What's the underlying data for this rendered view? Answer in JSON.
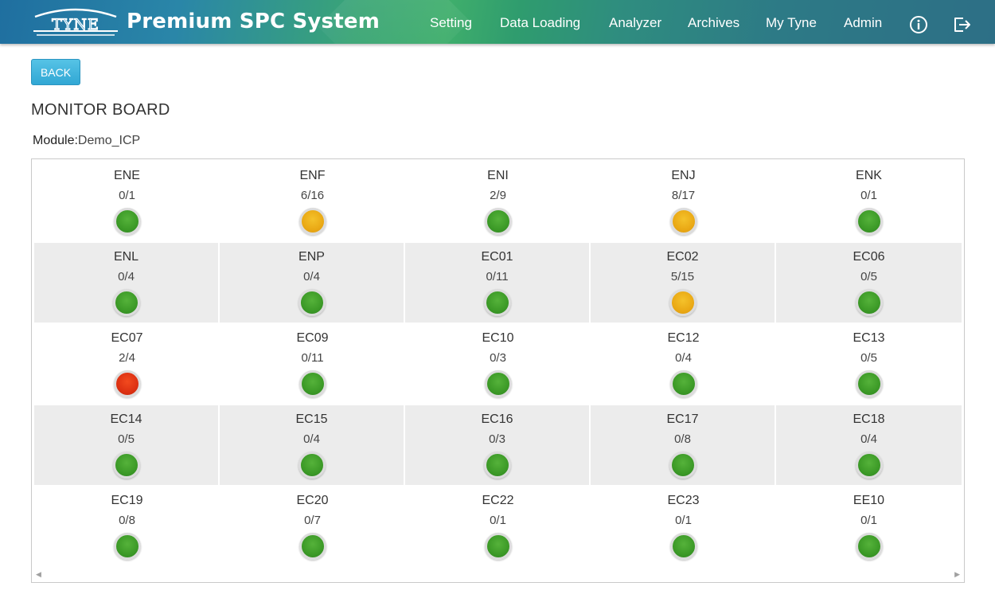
{
  "header": {
    "logo_text": "TYNE",
    "app_title": "Premium SPC System",
    "nav": [
      {
        "label": "Setting"
      },
      {
        "label": "Data Loading"
      },
      {
        "label": "Analyzer"
      },
      {
        "label": "Archives"
      },
      {
        "label": "My Tyne"
      },
      {
        "label": "Admin"
      }
    ],
    "icons": [
      "info-icon",
      "logout-icon"
    ]
  },
  "back_label": "BACK",
  "page_title": "MONITOR BOARD",
  "module": {
    "label": "Module:",
    "value": "Demo_ICP"
  },
  "status_colors": {
    "green": "#3c9a27",
    "yellow": "#eaa915",
    "red": "#dd3112"
  },
  "board": [
    [
      {
        "name": "ENE",
        "count": "0/1",
        "status": "green"
      },
      {
        "name": "ENF",
        "count": "6/16",
        "status": "yellow"
      },
      {
        "name": "ENI",
        "count": "2/9",
        "status": "green"
      },
      {
        "name": "ENJ",
        "count": "8/17",
        "status": "yellow"
      },
      {
        "name": "ENK",
        "count": "0/1",
        "status": "green"
      }
    ],
    [
      {
        "name": "ENL",
        "count": "0/4",
        "status": "green"
      },
      {
        "name": "ENP",
        "count": "0/4",
        "status": "green"
      },
      {
        "name": "EC01",
        "count": "0/11",
        "status": "green"
      },
      {
        "name": "EC02",
        "count": "5/15",
        "status": "yellow"
      },
      {
        "name": "EC06",
        "count": "0/5",
        "status": "green"
      }
    ],
    [
      {
        "name": "EC07",
        "count": "2/4",
        "status": "red"
      },
      {
        "name": "EC09",
        "count": "0/11",
        "status": "green"
      },
      {
        "name": "EC10",
        "count": "0/3",
        "status": "green"
      },
      {
        "name": "EC12",
        "count": "0/4",
        "status": "green"
      },
      {
        "name": "EC13",
        "count": "0/5",
        "status": "green"
      }
    ],
    [
      {
        "name": "EC14",
        "count": "0/5",
        "status": "green"
      },
      {
        "name": "EC15",
        "count": "0/4",
        "status": "green"
      },
      {
        "name": "EC16",
        "count": "0/3",
        "status": "green"
      },
      {
        "name": "EC17",
        "count": "0/8",
        "status": "green"
      },
      {
        "name": "EC18",
        "count": "0/4",
        "status": "green"
      }
    ],
    [
      {
        "name": "EC19",
        "count": "0/8",
        "status": "green"
      },
      {
        "name": "EC20",
        "count": "0/7",
        "status": "green"
      },
      {
        "name": "EC22",
        "count": "0/1",
        "status": "green"
      },
      {
        "name": "EC23",
        "count": "0/1",
        "status": "green"
      },
      {
        "name": "EE10",
        "count": "0/1",
        "status": "green"
      }
    ]
  ]
}
